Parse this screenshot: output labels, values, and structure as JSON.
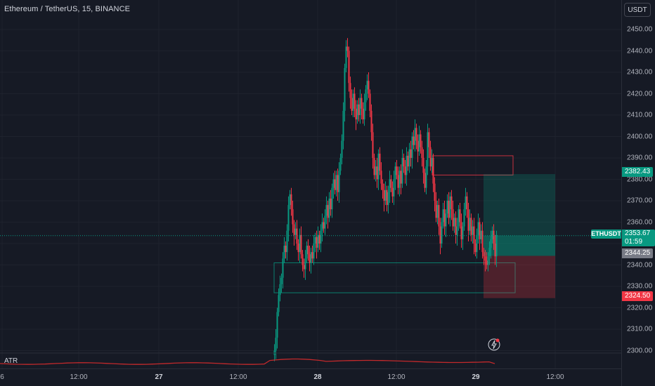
{
  "header": {
    "title": "Ethereum / TetherUS, 15, BINANCE",
    "currency": "USDT"
  },
  "colors": {
    "up": "#089981",
    "down": "#f23645",
    "background": "#161a25",
    "atr": "#c2292b"
  },
  "price_axis": {
    "min": 2295,
    "max": 2455,
    "ticks": [
      "2450.00",
      "2440.00",
      "2430.00",
      "2420.00",
      "2410.00",
      "2400.00",
      "2390.00",
      "2380.00",
      "2370.00",
      "2360.00",
      "2350.00",
      "2340.00",
      "2330.00",
      "2320.00",
      "2310.00",
      "2300.00"
    ]
  },
  "time_axis": {
    "labels": [
      {
        "text": "6",
        "bold": false
      },
      {
        "text": "12:00",
        "bold": false
      },
      {
        "text": "27",
        "bold": true
      },
      {
        "text": "12:00",
        "bold": false
      },
      {
        "text": "28",
        "bold": true
      },
      {
        "text": "12:00",
        "bold": false
      },
      {
        "text": "29",
        "bold": true
      },
      {
        "text": "12:00",
        "bold": false
      }
    ]
  },
  "tags": {
    "target": {
      "value": "2382.43",
      "color": "#089981"
    },
    "last": {
      "value": "2353.67",
      "color": "#089981"
    },
    "countdown": "01:59",
    "entry": {
      "value": "2344.25",
      "color": "#787b86"
    },
    "stop": {
      "value": "2324.50",
      "color": "#f23645"
    },
    "symbol": "ETHUSDT"
  },
  "indicator": {
    "name": "ATR"
  },
  "position": {
    "entry": 2344.25,
    "target": 2382.43,
    "stop": 2324.5
  },
  "zones": [
    {
      "kind": "supply",
      "top": 2391,
      "bottom": 2382
    },
    {
      "kind": "demand",
      "top": 2341,
      "bottom": 2327
    }
  ]
}
